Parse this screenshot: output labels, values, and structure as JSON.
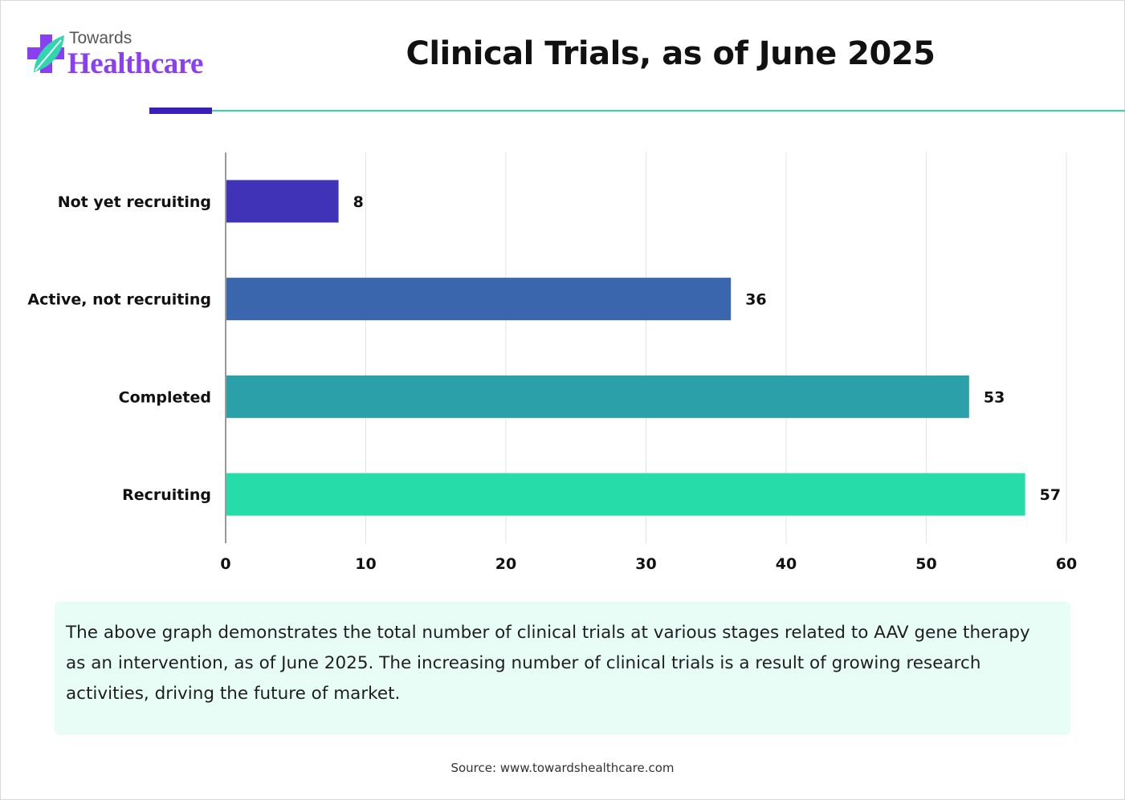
{
  "brand": {
    "name_top": "Towards",
    "name_bottom": "Healthcare"
  },
  "header": {
    "title": "Clinical Trials, as of June 2025"
  },
  "colors": {
    "accent_bar": "#3a1fb8",
    "accent_line": "#2fd6ae",
    "note_bg": "#e8fdf6"
  },
  "chart_data": {
    "type": "bar",
    "orientation": "horizontal",
    "title": "",
    "xlabel": "",
    "ylabel": "",
    "categories": [
      "Not yet recruiting",
      "Active, not recruiting",
      "Completed",
      "Recruiting"
    ],
    "values": [
      8,
      36,
      53,
      57
    ],
    "value_labels": [
      "8",
      "36",
      "53",
      "57"
    ],
    "bar_colors": [
      "#4133b8",
      "#3966ad",
      "#2ca0a8",
      "#26dca8"
    ],
    "xlim": [
      0,
      60
    ],
    "xticks": [
      0,
      10,
      20,
      30,
      40,
      50,
      60
    ],
    "grid": "vertical",
    "legend": "none"
  },
  "note": {
    "text": "The above graph demonstrates the total number of clinical trials at various stages related to AAV gene therapy as an intervention, as of June 2025. The increasing number of clinical trials is a result of growing research activities, driving the future of market."
  },
  "source": {
    "text": "Source: www.towardshealthcare.com"
  }
}
